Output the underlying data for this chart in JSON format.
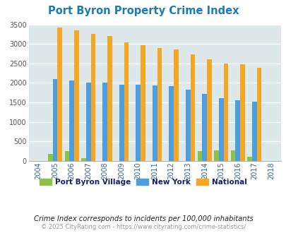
{
  "title": "Port Byron Property Crime Index",
  "years": [
    2004,
    2005,
    2006,
    2007,
    2008,
    2009,
    2010,
    2011,
    2012,
    2013,
    2014,
    2015,
    2016,
    2017,
    2018
  ],
  "port_byron": [
    0,
    175,
    255,
    75,
    0,
    0,
    0,
    0,
    0,
    0,
    250,
    275,
    275,
    110,
    0
  ],
  "new_york": [
    0,
    2090,
    2055,
    2000,
    2010,
    1945,
    1945,
    1930,
    1920,
    1830,
    1710,
    1605,
    1560,
    1510,
    0
  ],
  "national": [
    0,
    3430,
    3340,
    3265,
    3210,
    3035,
    2960,
    2900,
    2865,
    2730,
    2600,
    2490,
    2480,
    2380,
    0
  ],
  "port_byron_color": "#8bc34a",
  "new_york_color": "#4d9de0",
  "national_color": "#f5a623",
  "bg_color": "#dde8ea",
  "ylim": [
    0,
    3500
  ],
  "yticks": [
    0,
    500,
    1000,
    1500,
    2000,
    2500,
    3000,
    3500
  ],
  "xlabel_note": "Crime Index corresponds to incidents per 100,000 inhabitants",
  "footer": "© 2025 CityRating.com - https://www.cityrating.com/crime-statistics/",
  "legend_labels": [
    "Port Byron Village",
    "New York",
    "National"
  ],
  "bar_width": 0.28
}
